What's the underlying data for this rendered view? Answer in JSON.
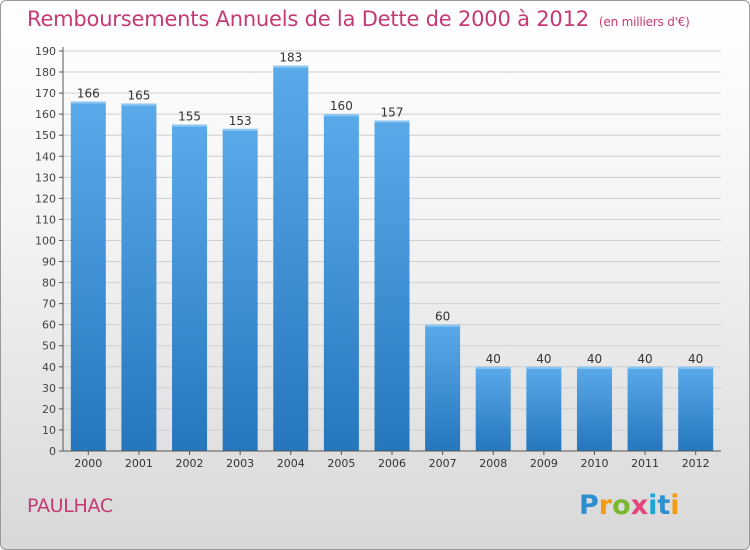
{
  "title": "Remboursements Annuels de la Dette de 2000 à 2012",
  "unit": "(en milliers d'€)",
  "commune": "PAULHAC",
  "brand": {
    "letters": [
      "P",
      "r",
      "o",
      "x",
      "i",
      "t",
      "i"
    ],
    "colors": [
      "#2e8fd0",
      "#f39c12",
      "#7cb82f",
      "#e0457b",
      "#1aa6d8",
      "#2e8fd0",
      "#f39c12"
    ]
  },
  "colors": {
    "bar": "#4f9fe0",
    "bar_dark": "#2b78c1",
    "title": "#c53a75",
    "grid": "#d0d0d0"
  },
  "chart_data": {
    "type": "bar",
    "categories": [
      "2000",
      "2001",
      "2002",
      "2003",
      "2004",
      "2005",
      "2006",
      "2007",
      "2008",
      "2009",
      "2010",
      "2011",
      "2012"
    ],
    "values": [
      166,
      165,
      155,
      153,
      183,
      160,
      157,
      60,
      40,
      40,
      40,
      40,
      40
    ],
    "ylim": [
      0,
      190
    ],
    "yticks": [
      0,
      10,
      20,
      30,
      40,
      50,
      60,
      70,
      80,
      90,
      100,
      110,
      120,
      130,
      140,
      150,
      160,
      170,
      180,
      190
    ],
    "grid": true
  }
}
